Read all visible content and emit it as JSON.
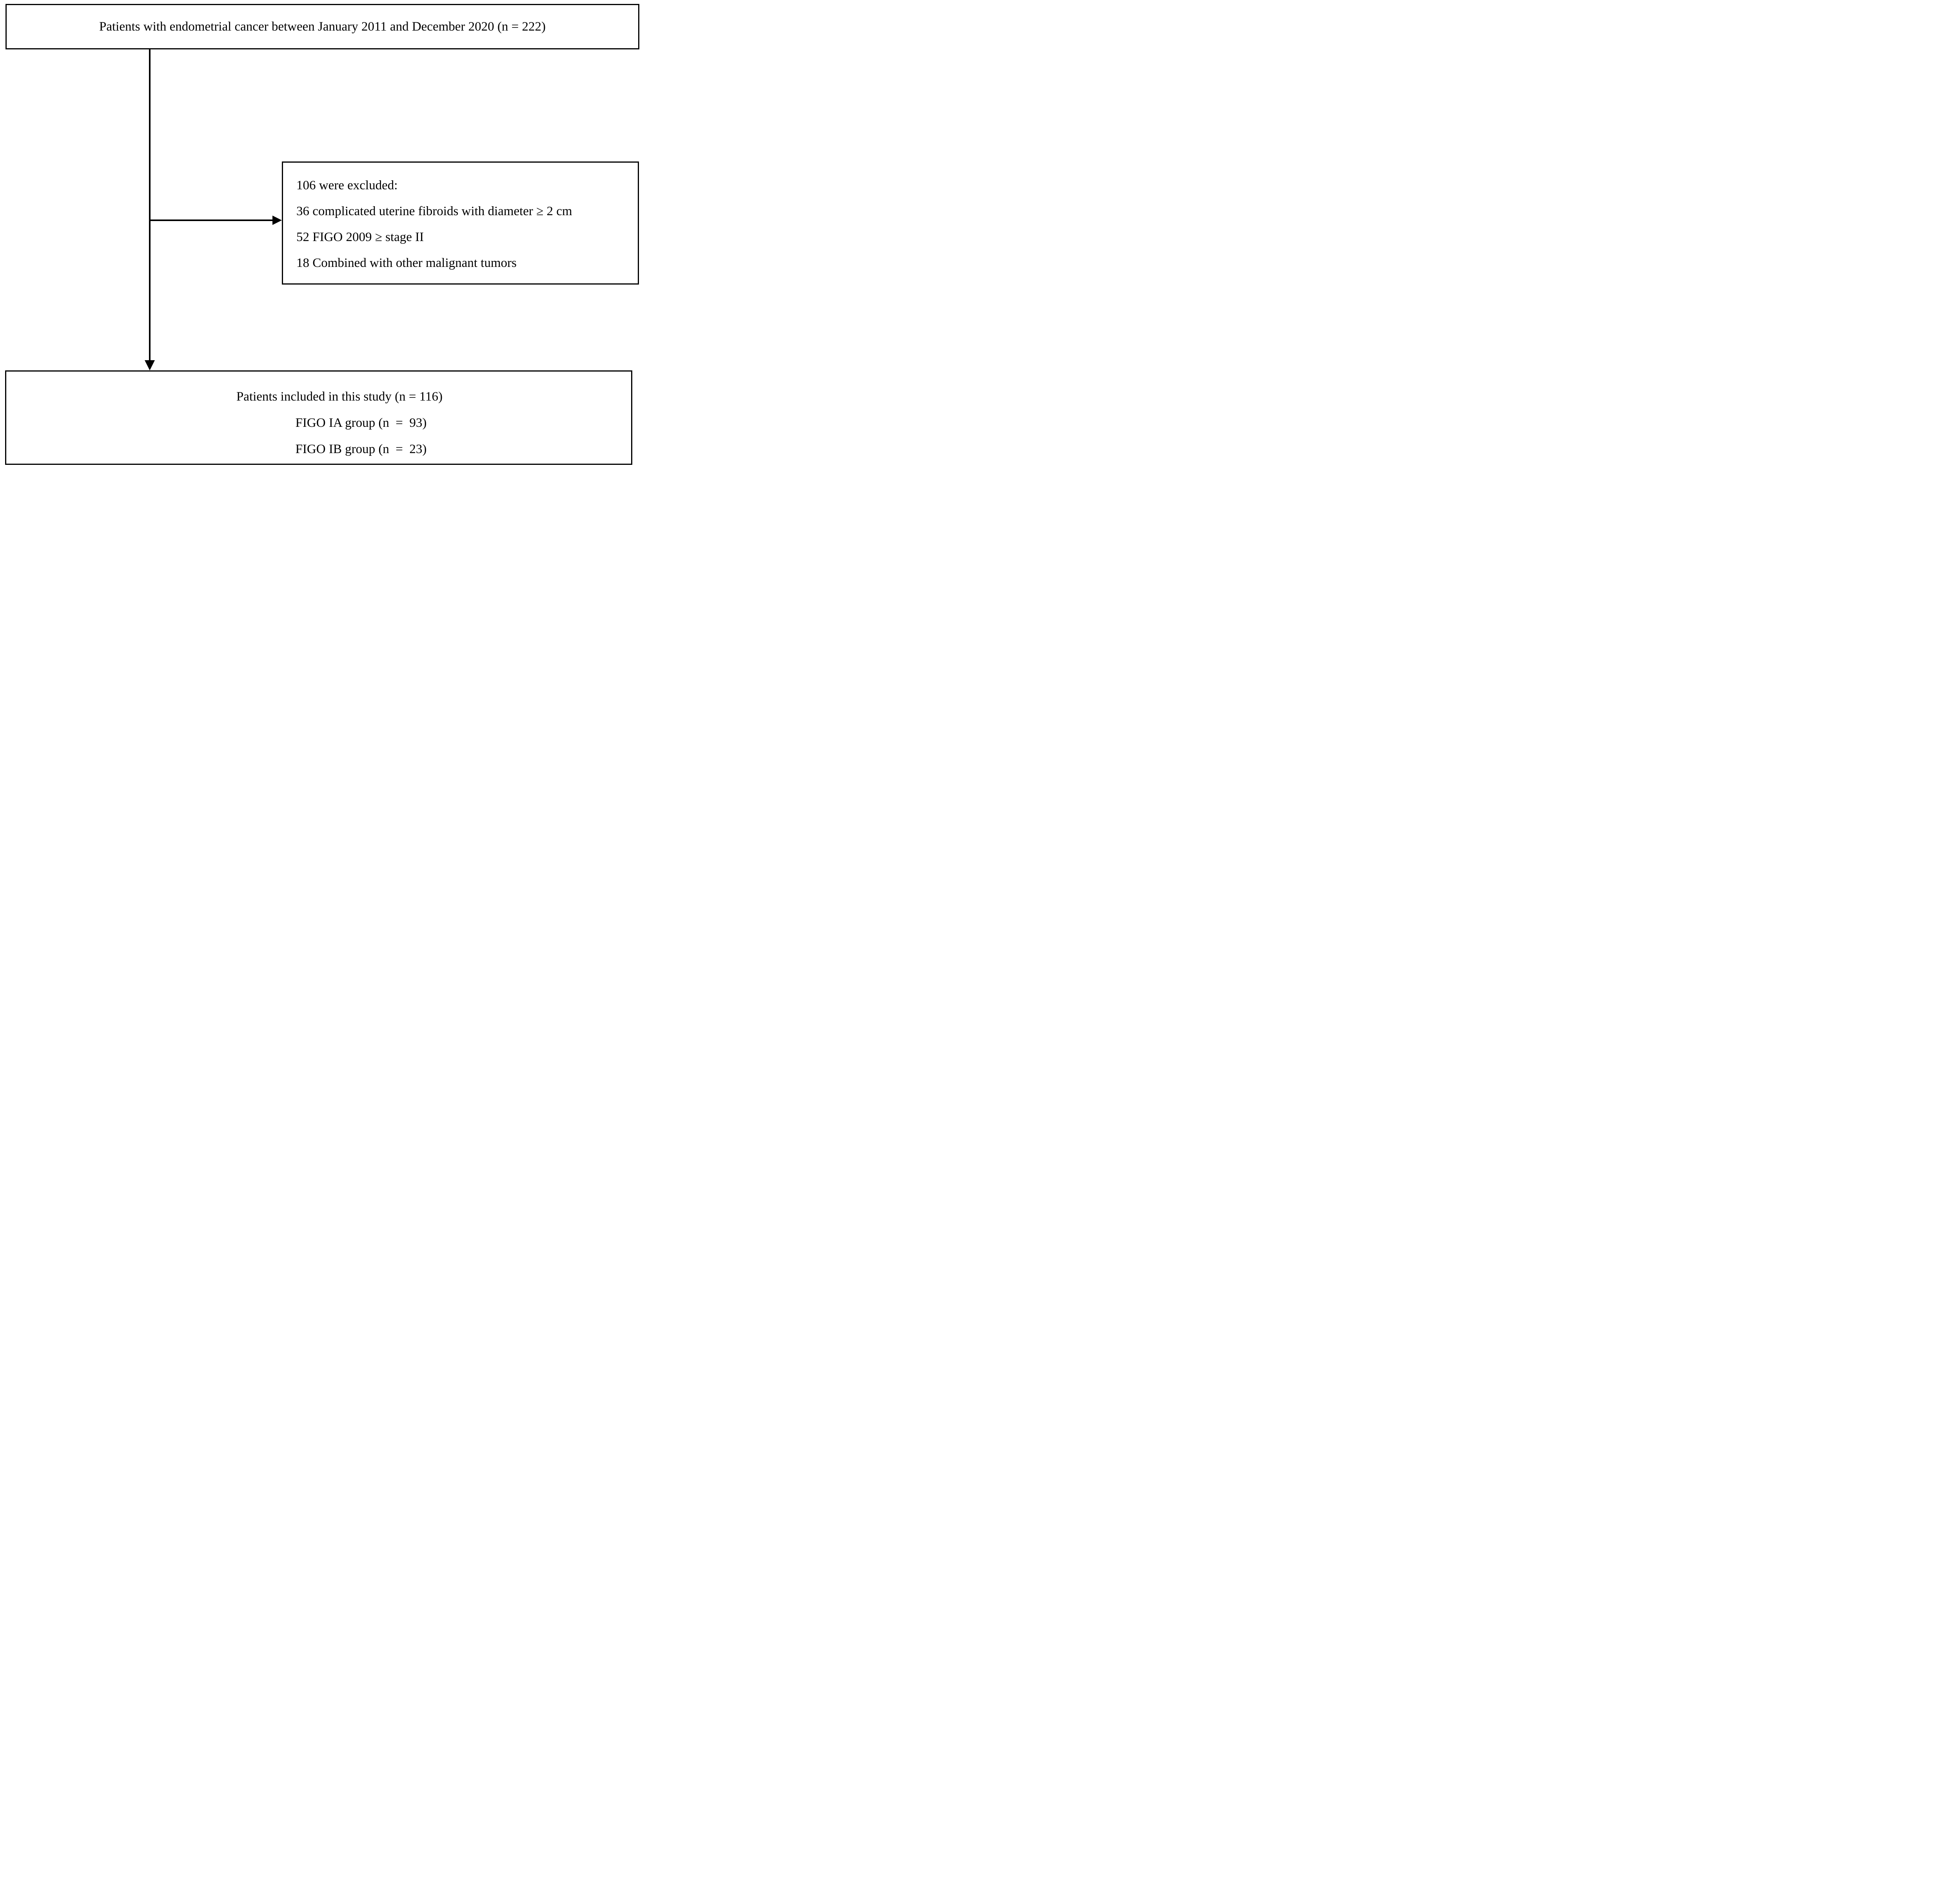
{
  "figure": {
    "type": "patient-flow-diagram",
    "background_color": "#ffffff",
    "line_color": "#000000",
    "text_color": "#000000"
  },
  "boxes": {
    "source": {
      "text": "Patients with endometrial cancer between January 2011 and December 2020 (n = 222)"
    },
    "excluded": {
      "lines": [
        "106 were excluded:",
        "36 complicated uterine fibroids with diameter ≥ 2 cm",
        "52 FIGO 2009 ≥ stage II",
        "18 Combined with other malignant tumors"
      ]
    },
    "included": {
      "lines": [
        "Patients included in this study (n = 116)",
        "FIGO IA group (n  =  93)",
        "FIGO IB group (n  =  23)"
      ]
    }
  }
}
